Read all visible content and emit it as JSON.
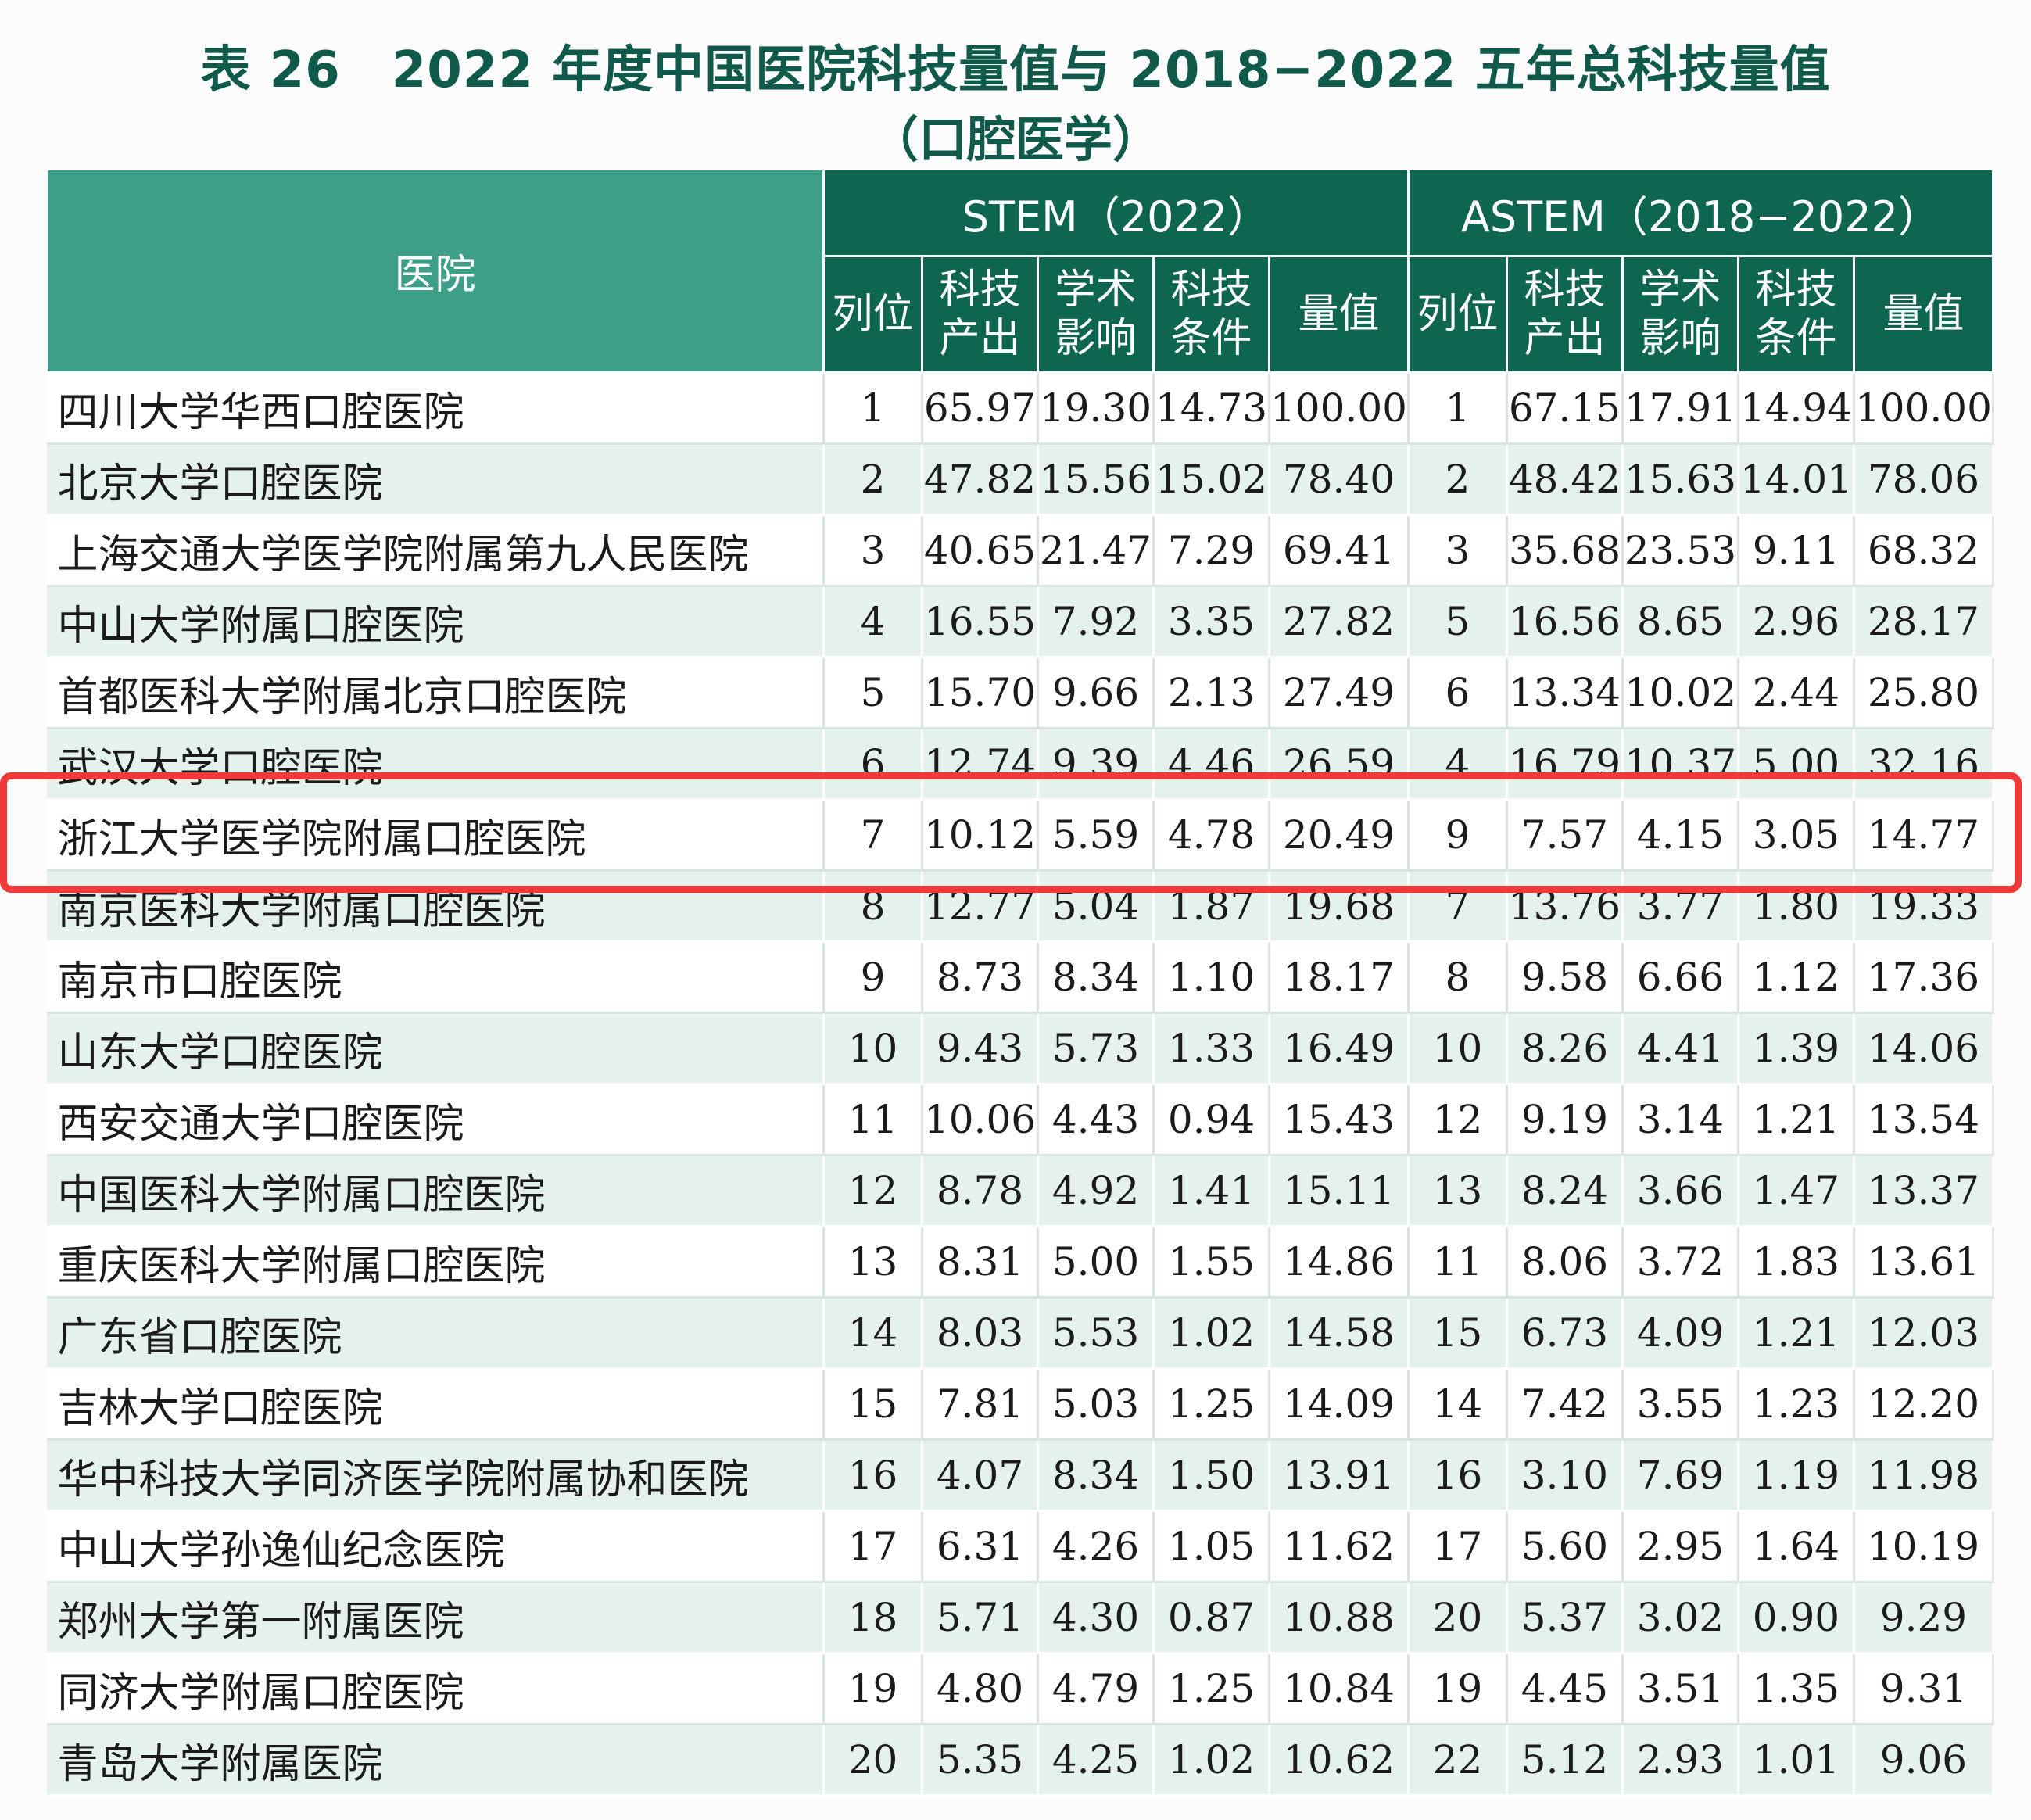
{
  "title": {
    "line1": "表 26　2022 年度中国医院科技量值与 2018−2022 五年总科技量值",
    "line2": "（口腔医学）"
  },
  "header": {
    "hospital": "医院",
    "group_stem": "STEM（2022）",
    "group_astem": "ASTEM（2018−2022）",
    "stem_sub": [
      "列位",
      "科技\n产出",
      "学术\n影响",
      "科技\n条件",
      "量值"
    ],
    "astem_sub": [
      "列位",
      "科技\n产出",
      "学术\n影响",
      "科技\n条件",
      "量值"
    ]
  },
  "highlight_color": "#ef3a38",
  "rows": [
    [
      "四川大学华西口腔医院",
      "1",
      "65.97",
      "19.30",
      "14.73",
      "100.00",
      "1",
      "67.15",
      "17.91",
      "14.94",
      "100.00"
    ],
    [
      "北京大学口腔医院",
      "2",
      "47.82",
      "15.56",
      "15.02",
      "78.40",
      "2",
      "48.42",
      "15.63",
      "14.01",
      "78.06"
    ],
    [
      "上海交通大学医学院附属第九人民医院",
      "3",
      "40.65",
      "21.47",
      "7.29",
      "69.41",
      "3",
      "35.68",
      "23.53",
      "9.11",
      "68.32"
    ],
    [
      "中山大学附属口腔医院",
      "4",
      "16.55",
      "7.92",
      "3.35",
      "27.82",
      "5",
      "16.56",
      "8.65",
      "2.96",
      "28.17"
    ],
    [
      "首都医科大学附属北京口腔医院",
      "5",
      "15.70",
      "9.66",
      "2.13",
      "27.49",
      "6",
      "13.34",
      "10.02",
      "2.44",
      "25.80"
    ],
    [
      "武汉大学口腔医院",
      "6",
      "12.74",
      "9.39",
      "4.46",
      "26.59",
      "4",
      "16.79",
      "10.37",
      "5.00",
      "32.16"
    ],
    [
      "浙江大学医学院附属口腔医院",
      "7",
      "10.12",
      "5.59",
      "4.78",
      "20.49",
      "9",
      "7.57",
      "4.15",
      "3.05",
      "14.77"
    ],
    [
      "南京医科大学附属口腔医院",
      "8",
      "12.77",
      "5.04",
      "1.87",
      "19.68",
      "7",
      "13.76",
      "3.77",
      "1.80",
      "19.33"
    ],
    [
      "南京市口腔医院",
      "9",
      "8.73",
      "8.34",
      "1.10",
      "18.17",
      "8",
      "9.58",
      "6.66",
      "1.12",
      "17.36"
    ],
    [
      "山东大学口腔医院",
      "10",
      "9.43",
      "5.73",
      "1.33",
      "16.49",
      "10",
      "8.26",
      "4.41",
      "1.39",
      "14.06"
    ],
    [
      "西安交通大学口腔医院",
      "11",
      "10.06",
      "4.43",
      "0.94",
      "15.43",
      "12",
      "9.19",
      "3.14",
      "1.21",
      "13.54"
    ],
    [
      "中国医科大学附属口腔医院",
      "12",
      "8.78",
      "4.92",
      "1.41",
      "15.11",
      "13",
      "8.24",
      "3.66",
      "1.47",
      "13.37"
    ],
    [
      "重庆医科大学附属口腔医院",
      "13",
      "8.31",
      "5.00",
      "1.55",
      "14.86",
      "11",
      "8.06",
      "3.72",
      "1.83",
      "13.61"
    ],
    [
      "广东省口腔医院",
      "14",
      "8.03",
      "5.53",
      "1.02",
      "14.58",
      "15",
      "6.73",
      "4.09",
      "1.21",
      "12.03"
    ],
    [
      "吉林大学口腔医院",
      "15",
      "7.81",
      "5.03",
      "1.25",
      "14.09",
      "14",
      "7.42",
      "3.55",
      "1.23",
      "12.20"
    ],
    [
      "华中科技大学同济医学院附属协和医院",
      "16",
      "4.07",
      "8.34",
      "1.50",
      "13.91",
      "16",
      "3.10",
      "7.69",
      "1.19",
      "11.98"
    ],
    [
      "中山大学孙逸仙纪念医院",
      "17",
      "6.31",
      "4.26",
      "1.05",
      "11.62",
      "17",
      "5.60",
      "2.95",
      "1.64",
      "10.19"
    ],
    [
      "郑州大学第一附属医院",
      "18",
      "5.71",
      "4.30",
      "0.87",
      "10.88",
      "20",
      "5.37",
      "3.02",
      "0.90",
      "9.29"
    ],
    [
      "同济大学附属口腔医院",
      "19",
      "4.80",
      "4.79",
      "1.25",
      "10.84",
      "19",
      "4.45",
      "3.51",
      "1.35",
      "9.31"
    ],
    [
      "青岛大学附属医院",
      "20",
      "5.35",
      "4.25",
      "1.02",
      "10.62",
      "22",
      "5.12",
      "2.93",
      "1.01",
      "9.06"
    ]
  ]
}
